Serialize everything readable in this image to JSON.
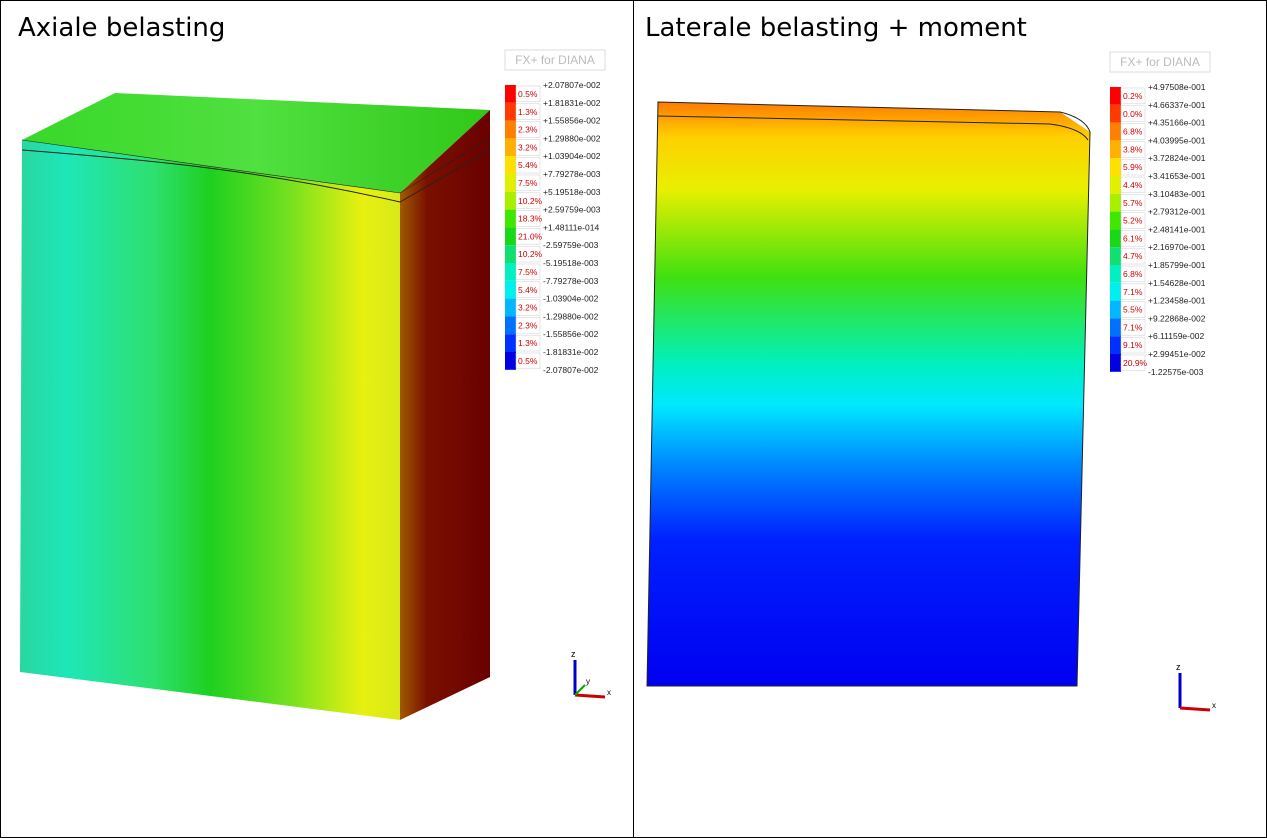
{
  "table": {
    "rows": [
      [
        {
          "title": "Axiale belasting",
          "legend": {
            "title": "FX+ for DIANA",
            "percents": [
              "0.5%",
              "1.3%",
              "2.3%",
              "3.2%",
              "5.4%",
              "7.5%",
              "10.2%",
              "18.3%",
              "21.0%",
              "10.2%",
              "7.5%",
              "5.4%",
              "3.2%",
              "2.3%",
              "1.3%",
              "0.5%"
            ],
            "values": [
              "+2.07807e-002",
              "+1.81831e-002",
              "+1.55856e-002",
              "+1.29880e-002",
              "+1.03904e-002",
              "+7.79278e-003",
              "+5.19518e-003",
              "+2.59759e-003",
              "+1.48111e-014",
              "-2.59759e-003",
              "-5.19518e-003",
              "-7.79278e-003",
              "-1.03904e-002",
              "-1.29880e-002",
              "-1.55856e-002",
              "-1.81831e-002",
              "-2.07807e-002"
            ]
          },
          "axes": [
            "z",
            "y",
            "x"
          ]
        },
        {
          "title": "Laterale belasting + moment",
          "legend": {
            "title": "FX+ for DIANA",
            "percents": [
              "0.2%",
              "0.0%",
              "6.8%",
              "3.8%",
              "5.9%",
              "4.4%",
              "5.7%",
              "5.2%",
              "6.1%",
              "4.7%",
              "6.8%",
              "7.1%",
              "5.5%",
              "7.1%",
              "9.1%",
              "20.9%"
            ],
            "values": [
              "+4.97508e-001",
              "+4.66337e-001",
              "+4.35166e-001",
              "+4.03995e-001",
              "+3.72824e-001",
              "+3.41653e-001",
              "+3.10483e-001",
              "+2.79312e-001",
              "+2.48141e-001",
              "+2.16970e-001",
              "+1.85799e-001",
              "+1.54628e-001",
              "+1.23458e-001",
              "+9.22868e-002",
              "+6.11159e-002",
              "+2.99451e-002",
              "-1.22575e-003"
            ]
          },
          "axes": [
            "z",
            "x"
          ]
        }
      ]
    ]
  }
}
